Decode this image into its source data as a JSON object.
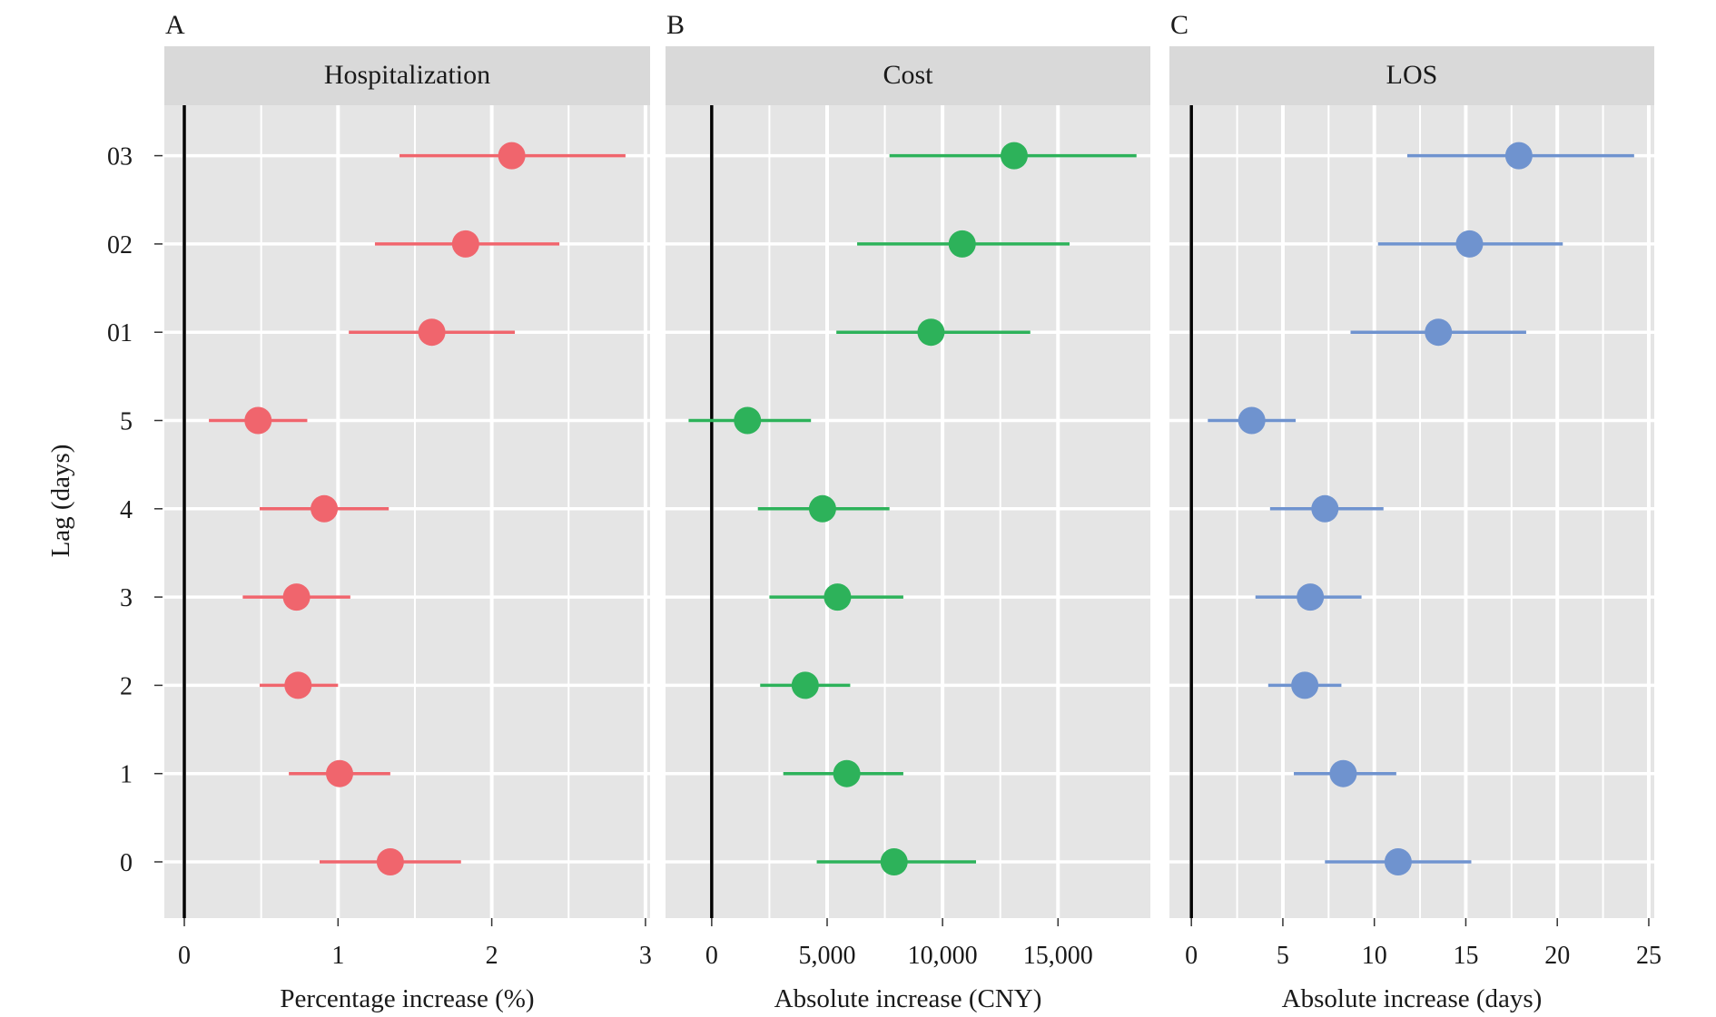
{
  "y_axis": {
    "label": "Lag (days)",
    "categories": [
      "0",
      "1",
      "2",
      "3",
      "4",
      "5",
      "01",
      "02",
      "03"
    ]
  },
  "colors": {
    "panel_bg": "#e5e5e5",
    "strip_bg": "#d9d9d9",
    "grid": "#ffffff",
    "zero_line": "#000000",
    "ci_neutral": "#808080"
  },
  "chart_data": [
    {
      "type": "scatter",
      "letter": "A",
      "title": "Hospitalization",
      "xlabel": "Percentage increase (%)",
      "ylabel": "Lag (days)",
      "xlim": [
        -0.13,
        3.03
      ],
      "xticks": [
        0,
        1,
        2,
        3
      ],
      "xtick_labels": [
        "0",
        "1",
        "2",
        "3"
      ],
      "color": "#f0656d",
      "categories": [
        "0",
        "1",
        "2",
        "3",
        "4",
        "5",
        "01",
        "02",
        "03"
      ],
      "estimate": [
        1.34,
        1.01,
        0.74,
        0.73,
        0.91,
        0.48,
        1.61,
        1.83,
        2.13
      ],
      "lower": [
        0.88,
        0.68,
        0.49,
        0.38,
        0.49,
        0.16,
        1.07,
        1.24,
        1.4
      ],
      "upper": [
        1.8,
        1.34,
        1.0,
        1.08,
        1.33,
        0.8,
        2.15,
        2.44,
        2.87
      ],
      "grid": true
    },
    {
      "type": "scatter",
      "letter": "B",
      "title": "Cost",
      "xlabel": "Absolute increase (CNY)",
      "ylabel": "Lag (days)",
      "xlim": [
        -2000,
        19000
      ],
      "xticks": [
        0,
        5000,
        10000,
        15000
      ],
      "xtick_labels": [
        "0",
        "5,000",
        "10,000",
        "15,000"
      ],
      "color": "#2db25a",
      "categories": [
        "0",
        "1",
        "2",
        "3",
        "4",
        "5",
        "01",
        "02",
        "03"
      ],
      "estimate": [
        7900,
        5850,
        4050,
        5450,
        4800,
        1550,
        9500,
        10850,
        13100
      ],
      "lower": [
        4550,
        3100,
        2100,
        2500,
        2000,
        -1000,
        5400,
        6300,
        7700
      ],
      "upper": [
        11450,
        8300,
        6000,
        8300,
        7700,
        4300,
        13800,
        15500,
        18400
      ],
      "grid": true
    },
    {
      "type": "scatter",
      "letter": "C",
      "title": "LOS",
      "xlabel": "Absolute increase (days)",
      "ylabel": "Lag (days)",
      "xlim": [
        -1.2,
        25.3
      ],
      "xticks": [
        0,
        5,
        10,
        15,
        20,
        25
      ],
      "xtick_labels": [
        "0",
        "5",
        "10",
        "15",
        "20",
        "25"
      ],
      "color": "#6f93cf",
      "categories": [
        "0",
        "1",
        "2",
        "3",
        "4",
        "5",
        "01",
        "02",
        "03"
      ],
      "estimate": [
        11.3,
        8.3,
        6.2,
        6.5,
        7.3,
        3.3,
        13.5,
        15.2,
        17.9
      ],
      "lower": [
        7.3,
        5.6,
        4.2,
        3.5,
        4.3,
        0.9,
        8.7,
        10.2,
        11.8
      ],
      "upper": [
        15.3,
        11.2,
        8.2,
        9.3,
        10.5,
        5.7,
        18.3,
        20.3,
        24.2
      ],
      "grid": true
    }
  ]
}
